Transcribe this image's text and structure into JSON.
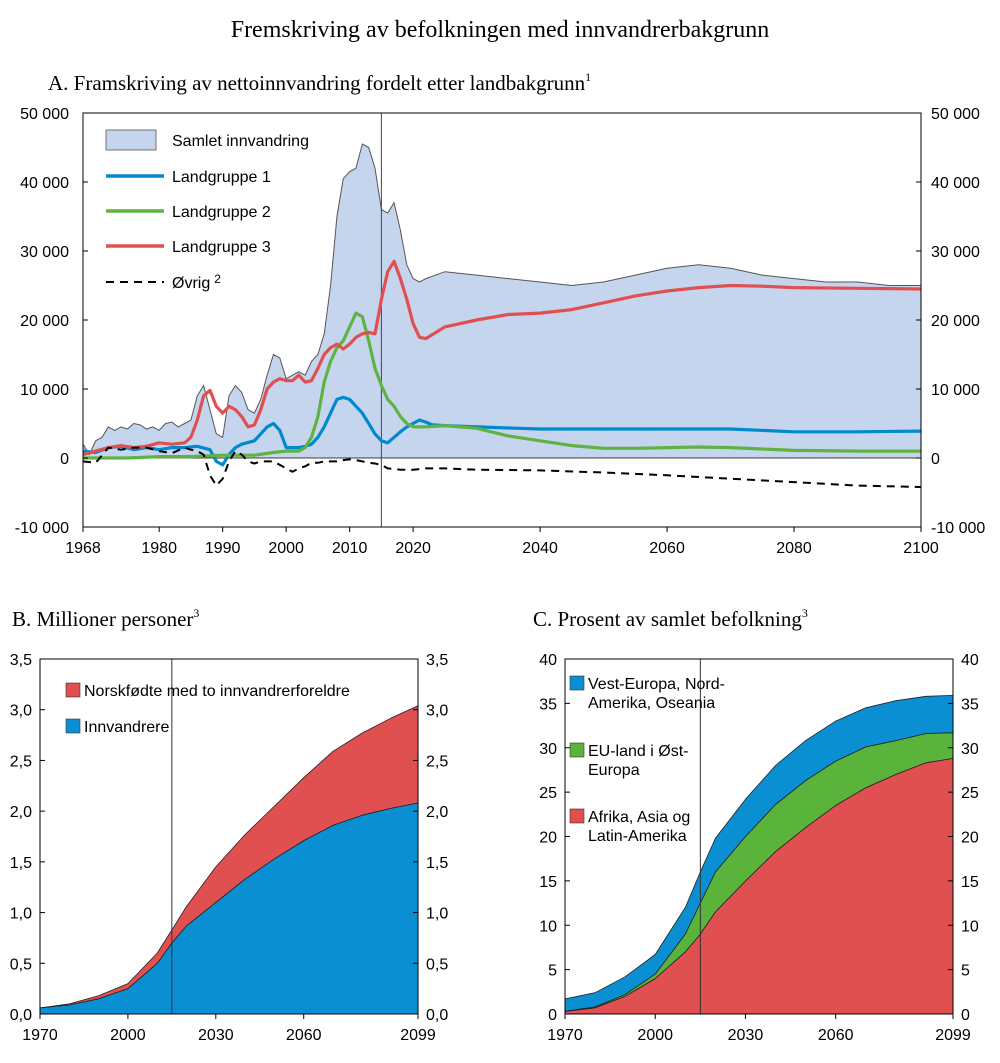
{
  "figure_title": "Fremskriving av befolkningen med innvandrerbakgrunn",
  "colors": {
    "samlet_fill": "#c6d5ee",
    "samlet_stroke": "#555555",
    "landgruppe1": "#0089cf",
    "landgruppe2": "#5fb343",
    "landgruppe3": "#e15050",
    "ovrig": "#000000",
    "norskfodte": "#e05050",
    "innvandrere": "#0a8fd3",
    "vest": "#0a8fd3",
    "eu": "#5ab43c",
    "afrika": "#e05050"
  },
  "chart_data": [
    {
      "id": "A",
      "type": "line",
      "title": "A.  Framskriving av nettoinnvandring fordelt etter landbakgrunn",
      "title_sup": "1",
      "xlim": [
        1968,
        2100
      ],
      "ylim": [
        -10000,
        50000
      ],
      "y_ticks": [
        -10000,
        0,
        10000,
        20000,
        30000,
        40000,
        50000
      ],
      "y_tick_labels": [
        "-10 000",
        "0",
        "10 000",
        "20 000",
        "30 000",
        "40 000",
        "50 000"
      ],
      "x_ticks": [
        1968,
        1980,
        1990,
        2000,
        2010,
        2020,
        2040,
        2060,
        2080,
        2100
      ],
      "x_tick_labels": [
        "1968",
        "1980",
        "1990",
        "2000",
        "2010",
        "2020",
        "2040",
        "2060",
        "2080",
        "2100"
      ],
      "vline": 2015,
      "legend": [
        "Samlet innvandring",
        "Landgruppe 1",
        "Landgruppe 2",
        "Landgruppe 3",
        "Øvrig"
      ],
      "legend_ovrig_sup": "2",
      "series": [
        {
          "name": "Samlet innvandring",
          "kind": "area",
          "x": [
            1968,
            1969,
            1970,
            1971,
            1972,
            1973,
            1974,
            1975,
            1976,
            1977,
            1978,
            1979,
            1980,
            1981,
            1982,
            1983,
            1984,
            1985,
            1986,
            1987,
            1988,
            1989,
            1990,
            1991,
            1992,
            1993,
            1994,
            1995,
            1996,
            1997,
            1998,
            1999,
            2000,
            2001,
            2002,
            2003,
            2004,
            2005,
            2006,
            2007,
            2008,
            2009,
            2010,
            2011,
            2012,
            2013,
            2014,
            2015,
            2016,
            2017,
            2018,
            2019,
            2020,
            2021,
            2022,
            2025,
            2030,
            2035,
            2040,
            2045,
            2050,
            2055,
            2060,
            2065,
            2070,
            2075,
            2080,
            2085,
            2090,
            2095,
            2100
          ],
          "values": [
            2000,
            500,
            2500,
            3000,
            4500,
            4000,
            4500,
            4200,
            5000,
            4800,
            4200,
            4500,
            4000,
            5000,
            5200,
            4500,
            5000,
            5500,
            9000,
            10500,
            7000,
            3500,
            3000,
            9000,
            10500,
            9500,
            7000,
            6500,
            8500,
            12000,
            15000,
            14500,
            11500,
            12000,
            12500,
            12000,
            14000,
            15000,
            18000,
            25000,
            35000,
            40500,
            41500,
            42000,
            45500,
            45000,
            42000,
            36000,
            35500,
            37000,
            33000,
            28000,
            26000,
            25500,
            26000,
            27000,
            26500,
            26000,
            25500,
            25000,
            25500,
            26500,
            27500,
            28000,
            27500,
            26500,
            26000,
            25500,
            25500,
            25000,
            25000
          ]
        },
        {
          "name": "Landgruppe 1",
          "kind": "line",
          "x": [
            1968,
            1970,
            1972,
            1974,
            1976,
            1978,
            1980,
            1982,
            1984,
            1986,
            1988,
            1989,
            1990,
            1991,
            1992,
            1993,
            1995,
            1997,
            1998,
            1999,
            2000,
            2001,
            2002,
            2003,
            2004,
            2005,
            2006,
            2007,
            2008,
            2009,
            2010,
            2011,
            2012,
            2013,
            2014,
            2015,
            2016,
            2017,
            2018,
            2019,
            2020,
            2021,
            2022,
            2023,
            2025,
            2030,
            2040,
            2050,
            2060,
            2070,
            2080,
            2090,
            2100
          ],
          "values": [
            1000,
            800,
            1500,
            1700,
            1200,
            1500,
            1200,
            1500,
            1500,
            1700,
            1200,
            -500,
            -1000,
            500,
            1500,
            2000,
            2500,
            4500,
            5000,
            4000,
            1500,
            1500,
            1500,
            1700,
            2000,
            3000,
            4500,
            6500,
            8500,
            8800,
            8500,
            7500,
            6500,
            5000,
            3500,
            2500,
            2200,
            3000,
            3800,
            4500,
            5000,
            5500,
            5200,
            4800,
            4700,
            4500,
            4200,
            4200,
            4200,
            4200,
            3800,
            3800,
            3900
          ]
        },
        {
          "name": "Landgruppe 2",
          "kind": "line",
          "x": [
            1968,
            1970,
            1975,
            1980,
            1985,
            1990,
            1995,
            1998,
            2000,
            2001,
            2002,
            2003,
            2004,
            2005,
            2006,
            2007,
            2008,
            2009,
            2010,
            2011,
            2012,
            2013,
            2014,
            2015,
            2016,
            2017,
            2018,
            2019,
            2020,
            2021,
            2022,
            2025,
            2030,
            2035,
            2040,
            2045,
            2050,
            2055,
            2060,
            2065,
            2070,
            2075,
            2080,
            2090,
            2100
          ],
          "values": [
            0,
            0,
            0,
            200,
            200,
            400,
            400,
            800,
            1000,
            1000,
            1000,
            1500,
            3000,
            6000,
            11000,
            14000,
            16000,
            17000,
            19000,
            21000,
            20500,
            17000,
            13000,
            10500,
            8500,
            7500,
            6000,
            5000,
            4500,
            4500,
            4500,
            4700,
            4300,
            3200,
            2500,
            1800,
            1400,
            1400,
            1500,
            1600,
            1500,
            1300,
            1100,
            1000,
            1000
          ]
        },
        {
          "name": "Landgruppe 3",
          "kind": "line",
          "x": [
            1968,
            1970,
            1972,
            1974,
            1976,
            1978,
            1980,
            1982,
            1984,
            1985,
            1986,
            1987,
            1988,
            1989,
            1990,
            1991,
            1992,
            1993,
            1994,
            1995,
            1996,
            1997,
            1998,
            1999,
            2000,
            2001,
            2002,
            2003,
            2004,
            2005,
            2006,
            2007,
            2008,
            2009,
            2010,
            2011,
            2012,
            2013,
            2014,
            2015,
            2016,
            2017,
            2018,
            2019,
            2020,
            2021,
            2022,
            2025,
            2030,
            2035,
            2040,
            2045,
            2050,
            2055,
            2060,
            2065,
            2070,
            2075,
            2080,
            2090,
            2100
          ],
          "values": [
            500,
            1000,
            1500,
            1800,
            1500,
            1700,
            2200,
            2000,
            2200,
            3000,
            5500,
            9000,
            9800,
            7500,
            6500,
            7500,
            7000,
            6000,
            4500,
            4800,
            7000,
            10000,
            11000,
            11500,
            11200,
            11200,
            12000,
            11000,
            11200,
            13000,
            15000,
            16000,
            16500,
            15800,
            16500,
            17500,
            18000,
            18200,
            18000,
            23000,
            27000,
            28500,
            26000,
            23000,
            19500,
            17500,
            17300,
            19000,
            20000,
            20800,
            21000,
            21500,
            22500,
            23500,
            24200,
            24700,
            25000,
            24900,
            24700,
            24600,
            24500
          ]
        },
        {
          "name": "Øvrig",
          "kind": "dashed",
          "x": [
            1968,
            1970,
            1972,
            1974,
            1976,
            1978,
            1980,
            1982,
            1984,
            1985,
            1986,
            1987,
            1988,
            1989,
            1990,
            1991,
            1992,
            1993,
            1994,
            1995,
            1996,
            1997,
            1998,
            1999,
            2000,
            2001,
            2002,
            2003,
            2004,
            2005,
            2006,
            2007,
            2008,
            2009,
            2010,
            2011,
            2012,
            2013,
            2014,
            2015,
            2016,
            2018,
            2020,
            2022,
            2025,
            2030,
            2040,
            2050,
            2060,
            2070,
            2080,
            2090,
            2100
          ],
          "values": [
            -500,
            -700,
            1500,
            1200,
            1500,
            1500,
            1000,
            700,
            1500,
            1200,
            1000,
            500,
            -2500,
            -4000,
            -3000,
            -500,
            1000,
            500,
            -500,
            -800,
            -500,
            -500,
            -500,
            -1000,
            -1500,
            -2000,
            -1500,
            -1200,
            -700,
            -700,
            -500,
            -500,
            -500,
            -300,
            -200,
            -300,
            -500,
            -700,
            -800,
            -1000,
            -1500,
            -1700,
            -1700,
            -1500,
            -1500,
            -1700,
            -1800,
            -2100,
            -2500,
            -3000,
            -3500,
            -4000,
            -4200
          ]
        }
      ]
    },
    {
      "id": "B",
      "type": "area",
      "title": "B.  Millioner personer",
      "title_sup": "3",
      "xlim": [
        1970,
        2099
      ],
      "ylim": [
        0,
        3.5
      ],
      "y_ticks": [
        0,
        0.5,
        1.0,
        1.5,
        2.0,
        2.5,
        3.0,
        3.5
      ],
      "y_tick_labels": [
        "0,0",
        "0,5",
        "1,0",
        "1,5",
        "2,0",
        "2,5",
        "3,0",
        "3,5"
      ],
      "x_ticks": [
        1970,
        2000,
        2030,
        2060,
        2099
      ],
      "x_tick_labels": [
        "1970",
        "2000",
        "2030",
        "2060",
        "2099"
      ],
      "vline": 2015,
      "legend": [
        "Norskfødte med to innvandrerforeldre",
        "Innvandrere"
      ],
      "stacked": true,
      "x": [
        1970,
        1980,
        1990,
        2000,
        2010,
        2015,
        2020,
        2030,
        2040,
        2050,
        2060,
        2070,
        2080,
        2090,
        2099
      ],
      "series": [
        {
          "name": "Innvandrere",
          "values": [
            0.06,
            0.09,
            0.15,
            0.25,
            0.5,
            0.7,
            0.87,
            1.1,
            1.33,
            1.53,
            1.71,
            1.86,
            1.96,
            2.03,
            2.08
          ]
        },
        {
          "name": "Norskfødte med to innvandrerforeldre",
          "values": [
            0.0,
            0.01,
            0.03,
            0.05,
            0.1,
            0.13,
            0.19,
            0.35,
            0.44,
            0.52,
            0.62,
            0.73,
            0.81,
            0.89,
            0.96
          ]
        }
      ]
    },
    {
      "id": "C",
      "type": "area",
      "title": "C.  Prosent av samlet befolkning",
      "title_sup": "3",
      "xlim": [
        1970,
        2099
      ],
      "ylim": [
        0,
        40
      ],
      "y_ticks": [
        0,
        5,
        10,
        15,
        20,
        25,
        30,
        35,
        40
      ],
      "y_tick_labels": [
        "0",
        "5",
        "10",
        "15",
        "20",
        "25",
        "30",
        "35",
        "40"
      ],
      "x_ticks": [
        1970,
        2000,
        2030,
        2060,
        2099
      ],
      "x_tick_labels": [
        "1970",
        "2000",
        "2030",
        "2060",
        "2099"
      ],
      "vline": 2015,
      "legend": [
        "Vest-Europa, Nord-Amerika, Oseania",
        "EU-land i Øst-Europa",
        "Afrika, Asia og Latin-Amerika"
      ],
      "legend_lines": [
        [
          "Vest-Europa, Nord-",
          "Amerika, Oseania"
        ],
        [
          "EU-land i Øst-",
          "Europa"
        ],
        [
          "Afrika, Asia og",
          "Latin-Amerika"
        ]
      ],
      "stacked": true,
      "x": [
        1970,
        1980,
        1990,
        2000,
        2010,
        2015,
        2020,
        2030,
        2040,
        2050,
        2060,
        2070,
        2080,
        2090,
        2099
      ],
      "series": [
        {
          "name": "Afrika, Asia og Latin-Amerika",
          "values": [
            0.3,
            0.7,
            2.0,
            4.0,
            7.0,
            9.0,
            11.5,
            15.0,
            18.3,
            21.0,
            23.5,
            25.5,
            27.0,
            28.3,
            28.8
          ]
        },
        {
          "name": "EU-land i Øst-Europa",
          "values": [
            0.0,
            0.1,
            0.2,
            0.5,
            2.0,
            3.5,
            4.5,
            5.0,
            5.3,
            5.3,
            5.0,
            4.6,
            3.8,
            3.3,
            2.9
          ]
        },
        {
          "name": "Vest-Europa, Nord-Amerika, Oseania",
          "values": [
            1.4,
            1.6,
            2.0,
            2.2,
            3.0,
            3.5,
            3.8,
            4.2,
            4.4,
            4.5,
            4.5,
            4.4,
            4.5,
            4.2,
            4.2
          ]
        }
      ]
    }
  ]
}
